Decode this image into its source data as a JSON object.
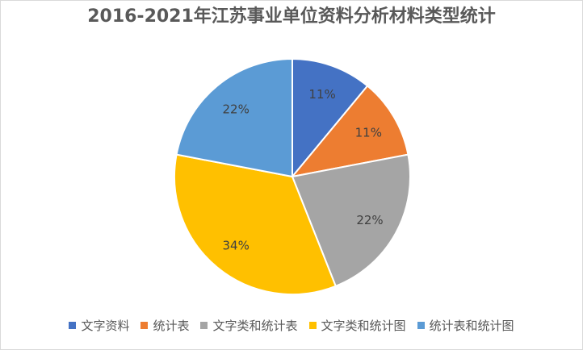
{
  "chart_data": {
    "type": "pie",
    "title": "2016-2021年江苏事业单位资料分析材料类型统计",
    "categories": [
      "文字资料",
      "统计表",
      "文字类和统计表",
      "文字类和统计图",
      "统计表和统计图"
    ],
    "values": [
      11,
      11,
      22,
      34,
      22
    ],
    "labels": [
      "11%",
      "11%",
      "22%",
      "34%",
      "22%"
    ],
    "colors": [
      "#4472C4",
      "#ED7D31",
      "#A5A5A5",
      "#FFC000",
      "#5B9BD5"
    ],
    "legend": "bottom"
  }
}
